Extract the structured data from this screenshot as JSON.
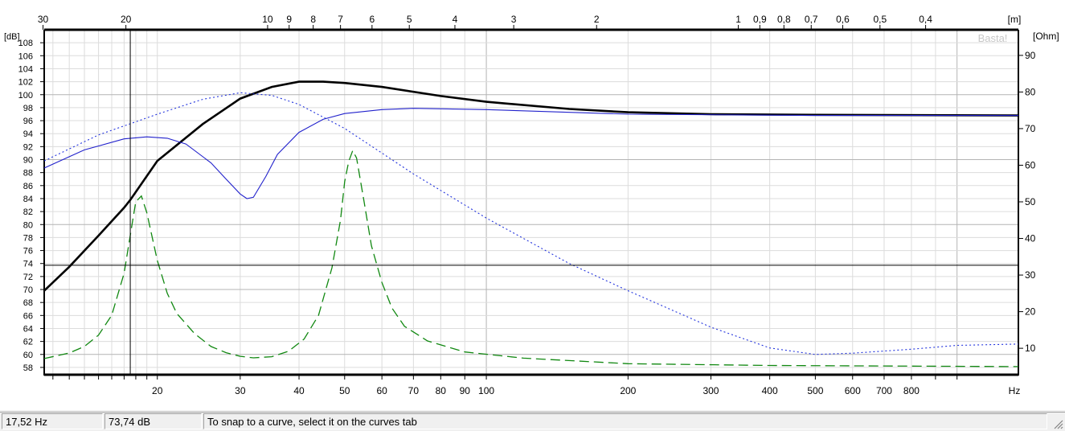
{
  "colors": {
    "spl_total": "#000000",
    "spl_blue": "#2222cc",
    "spl_blue_dotted": "#2233dd",
    "impedance": "#118811",
    "grid": "#c8c8c8",
    "cursor": "#000000"
  },
  "chart_data": {
    "type": "line",
    "x_axis": {
      "scale": "log",
      "range": [
        11.5,
        1350
      ],
      "tick_labels": [
        {
          "value": 20,
          "label": "20"
        },
        {
          "value": 30,
          "label": "30"
        },
        {
          "value": 40,
          "label": "40"
        },
        {
          "value": 50,
          "label": "50"
        },
        {
          "value": 60,
          "label": "60"
        },
        {
          "value": 70,
          "label": "70"
        },
        {
          "value": 80,
          "label": "80"
        },
        {
          "value": 90,
          "label": "90"
        },
        {
          "value": 100,
          "label": "100"
        },
        {
          "value": 200,
          "label": "200"
        },
        {
          "value": 300,
          "label": "300"
        },
        {
          "value": 400,
          "label": "400"
        },
        {
          "value": 500,
          "label": "500"
        },
        {
          "value": 600,
          "label": "600"
        },
        {
          "value": 700,
          "label": "700"
        },
        {
          "value": 800,
          "label": "800"
        }
      ],
      "unit": "Hz"
    },
    "top_axis": {
      "unit": "[m]",
      "tick_labels": [
        {
          "value": 30,
          "label": "30"
        },
        {
          "value": 20,
          "label": "20"
        },
        {
          "value": 10,
          "label": "10"
        },
        {
          "value": 9,
          "label": "9"
        },
        {
          "value": 8,
          "label": "8"
        },
        {
          "value": 7,
          "label": "7"
        },
        {
          "value": 6,
          "label": "6"
        },
        {
          "value": 5,
          "label": "5"
        },
        {
          "value": 4,
          "label": "4"
        },
        {
          "value": 3,
          "label": "3"
        },
        {
          "value": 2,
          "label": "2"
        },
        {
          "value": 1,
          "label": "1"
        },
        {
          "value": 0.9,
          "label": "0,9"
        },
        {
          "value": 0.8,
          "label": "0,8"
        },
        {
          "value": 0.7,
          "label": "0,7"
        },
        {
          "value": 0.6,
          "label": "0,6"
        },
        {
          "value": 0.5,
          "label": "0,5"
        },
        {
          "value": 0.4,
          "label": "0,4"
        }
      ]
    },
    "y_left": {
      "unit": "[dB]",
      "range": [
        57,
        110
      ],
      "tick_labels": [
        "58",
        "60",
        "62",
        "64",
        "66",
        "68",
        "70",
        "72",
        "74",
        "76",
        "78",
        "80",
        "82",
        "84",
        "86",
        "88",
        "90",
        "92",
        "94",
        "96",
        "98",
        "100",
        "102",
        "104",
        "106",
        "108"
      ]
    },
    "y_right": {
      "unit": "[Ohm]",
      "range": [
        3,
        97
      ],
      "tick_labels": [
        "10",
        "20",
        "30",
        "40",
        "50",
        "60",
        "70",
        "80",
        "90"
      ]
    },
    "watermark": "Basta!",
    "cursor": {
      "freq": 17.52,
      "db": 73.74
    },
    "series": [
      {
        "axis": "db",
        "style": "solid-thick",
        "points": [
          [
            11.5,
            69.8
          ],
          [
            13,
            73.5
          ],
          [
            15,
            78.3
          ],
          [
            17,
            82.6
          ],
          [
            17.52,
            83.8
          ],
          [
            20,
            89.8
          ],
          [
            25,
            95.5
          ],
          [
            30,
            99.4
          ],
          [
            35,
            101.2
          ],
          [
            40,
            102.0
          ],
          [
            45,
            102.0
          ],
          [
            50,
            101.8
          ],
          [
            60,
            101.2
          ],
          [
            80,
            99.8
          ],
          [
            100,
            98.9
          ],
          [
            150,
            97.8
          ],
          [
            200,
            97.3
          ],
          [
            300,
            97.0
          ],
          [
            500,
            96.9
          ],
          [
            1350,
            96.8
          ]
        ]
      },
      {
        "axis": "db",
        "style": "solid-thin",
        "points": [
          [
            11.5,
            88.7
          ],
          [
            14,
            91.5
          ],
          [
            17,
            93.2
          ],
          [
            19,
            93.5
          ],
          [
            21,
            93.3
          ],
          [
            23,
            92.4
          ],
          [
            26,
            89.5
          ],
          [
            28,
            87.0
          ],
          [
            30,
            84.7
          ],
          [
            31,
            84.0
          ],
          [
            32,
            84.2
          ],
          [
            34,
            87.4
          ],
          [
            36,
            90.8
          ],
          [
            40,
            94.2
          ],
          [
            45,
            96.2
          ],
          [
            50,
            97.1
          ],
          [
            60,
            97.7
          ],
          [
            70,
            97.9
          ],
          [
            100,
            97.7
          ],
          [
            200,
            97.0
          ],
          [
            500,
            96.8
          ],
          [
            1350,
            96.8
          ]
        ]
      },
      {
        "axis": "db",
        "style": "dotted",
        "points": [
          [
            11.5,
            89.8
          ],
          [
            15,
            93.8
          ],
          [
            20,
            97.0
          ],
          [
            25,
            99.3
          ],
          [
            30,
            100.3
          ],
          [
            35,
            99.9
          ],
          [
            40,
            98.5
          ],
          [
            50,
            94.8
          ],
          [
            70,
            87.8
          ],
          [
            100,
            81.0
          ],
          [
            150,
            74.0
          ],
          [
            200,
            69.8
          ],
          [
            300,
            64.2
          ],
          [
            400,
            61.0
          ],
          [
            500,
            60.0
          ],
          [
            600,
            60.2
          ],
          [
            800,
            60.8
          ],
          [
            1000,
            61.4
          ],
          [
            1350,
            61.6
          ]
        ]
      },
      {
        "axis": "ohm",
        "style": "dashed",
        "points": [
          [
            11.5,
            7.2
          ],
          [
            13,
            8.7
          ],
          [
            14,
            10.5
          ],
          [
            15,
            13.6
          ],
          [
            16,
            19.0
          ],
          [
            17,
            30.5
          ],
          [
            17.5,
            40.5
          ],
          [
            18,
            50.0
          ],
          [
            18.5,
            51.6
          ],
          [
            19,
            47.0
          ],
          [
            20,
            34.0
          ],
          [
            21,
            25.0
          ],
          [
            22,
            19.5
          ],
          [
            24,
            14.0
          ],
          [
            26,
            10.5
          ],
          [
            28,
            8.8
          ],
          [
            30,
            7.8
          ],
          [
            32,
            7.4
          ],
          [
            35,
            7.7
          ],
          [
            38,
            9.2
          ],
          [
            41,
            12.5
          ],
          [
            44,
            19.0
          ],
          [
            47,
            32.0
          ],
          [
            49,
            45.0
          ],
          [
            50,
            55.5
          ],
          [
            51,
            61.0
          ],
          [
            52,
            64.0
          ],
          [
            53,
            62.0
          ],
          [
            55,
            50.0
          ],
          [
            57,
            38.0
          ],
          [
            60,
            28.0
          ],
          [
            63,
            21.0
          ],
          [
            67,
            16.0
          ],
          [
            75,
            12.0
          ],
          [
            90,
            9.0
          ],
          [
            120,
            7.3
          ],
          [
            200,
            5.8
          ],
          [
            400,
            5.3
          ],
          [
            1350,
            5.0
          ]
        ]
      }
    ]
  },
  "status": {
    "freq": "17,52 Hz",
    "db": "73,74 dB",
    "hint": "To snap to a curve, select it on the curves tab"
  }
}
